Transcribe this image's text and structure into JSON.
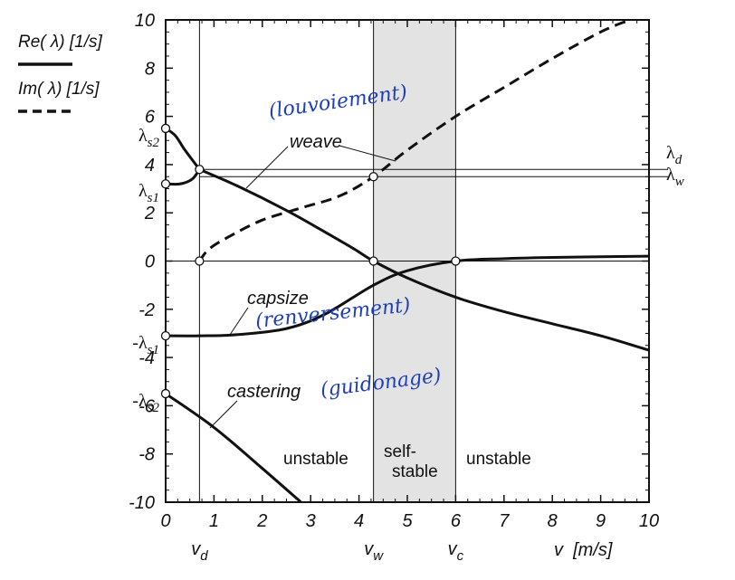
{
  "chart_data": {
    "type": "line",
    "xlabel": "v  [m/s]",
    "ylabel": "",
    "xlim": [
      0,
      10
    ],
    "ylim": [
      -10,
      10
    ],
    "x_ticks": [
      "0",
      "1",
      "2",
      "3",
      "4",
      "5",
      "6",
      "7",
      "8",
      "9",
      "10"
    ],
    "y_ticks": [
      "10",
      "8",
      "6",
      "4",
      "2",
      "0",
      "-2",
      "-4",
      "-6",
      "-8",
      "-10"
    ],
    "legend": [
      {
        "label": "Re( λ) [1/s]",
        "style": "solid"
      },
      {
        "label": "Im( λ) [1/s]",
        "style": "dashed"
      }
    ],
    "series": [
      {
        "style": "solid",
        "x": [
          0,
          0.2,
          0.4,
          0.7
        ],
        "y": [
          5.5,
          5.2,
          4.6,
          3.8
        ]
      },
      {
        "style": "solid",
        "x": [
          0,
          0.3,
          0.55,
          0.7
        ],
        "y": [
          3.2,
          3.2,
          3.4,
          3.8
        ]
      },
      {
        "style": "solid",
        "x": [
          0.7,
          1.5,
          2.5,
          3.3,
          3.9,
          4.3,
          5,
          6,
          7,
          8,
          9,
          10
        ],
        "y": [
          3.8,
          3.1,
          2.1,
          1.2,
          0.5,
          0,
          -0.7,
          -1.5,
          -2.1,
          -2.6,
          -3.1,
          -3.7
        ]
      },
      {
        "style": "dashed",
        "x": [
          0.7,
          0.9,
          1.3,
          2,
          2.8,
          3.6,
          4.3,
          5,
          6,
          7,
          8,
          9,
          9.6
        ],
        "y": [
          0,
          0.5,
          1.0,
          1.7,
          2.2,
          2.7,
          3.5,
          4.6,
          6.0,
          7.2,
          8.4,
          9.5,
          10
        ]
      },
      {
        "style": "solid",
        "x": [
          0,
          0.7,
          1.5,
          2.5,
          3.3,
          4.3,
          5,
          6,
          7,
          8,
          9,
          10
        ],
        "y": [
          -3.1,
          -3.1,
          -3.05,
          -2.8,
          -2.2,
          -1.0,
          -0.4,
          0,
          0.1,
          0.15,
          0.18,
          0.2
        ]
      },
      {
        "style": "solid",
        "x": [
          0,
          1,
          2,
          2.8
        ],
        "y": [
          -5.5,
          -6.9,
          -8.6,
          -10
        ]
      }
    ],
    "markers": [
      {
        "x": 0,
        "y": 5.5
      },
      {
        "x": 0,
        "y": 3.2
      },
      {
        "x": 0.7,
        "y": 3.8
      },
      {
        "x": 0.7,
        "y": 0
      },
      {
        "x": 0,
        "y": -3.1
      },
      {
        "x": 0,
        "y": -5.5
      },
      {
        "x": 4.3,
        "y": 3.5
      },
      {
        "x": 4.3,
        "y": 0
      },
      {
        "x": 6,
        "y": 0
      }
    ],
    "vertical_lines_x": [
      0.7,
      4.3,
      6.0
    ],
    "horizontal_lines_y": [
      0,
      3.8,
      3.5
    ],
    "shaded_region_x": [
      4.3,
      6.0
    ],
    "left_symbols": [
      {
        "text": "λs2",
        "y": 5.5
      },
      {
        "text": "λs1",
        "y": 3.2
      },
      {
        "text": "-λs1",
        "y": -3.1
      },
      {
        "text": "-λs2",
        "y": -5.5
      }
    ],
    "right_symbols": [
      {
        "text": "λd",
        "y": 4.1
      },
      {
        "text": "λw",
        "y": 3.2
      }
    ],
    "below_axis_labels": [
      {
        "text": "vd",
        "x": 0.7
      },
      {
        "text": "vw",
        "x": 4.3
      },
      {
        "text": "vc",
        "x": 6.0
      }
    ],
    "mode_labels": [
      "weave",
      "capsize",
      "castering"
    ],
    "region_labels": [
      "unstable",
      "self-\nstable",
      "unstable"
    ],
    "handwritten_notes": [
      "(louvoiement)",
      "(renversement)",
      "(guidonage)"
    ]
  }
}
